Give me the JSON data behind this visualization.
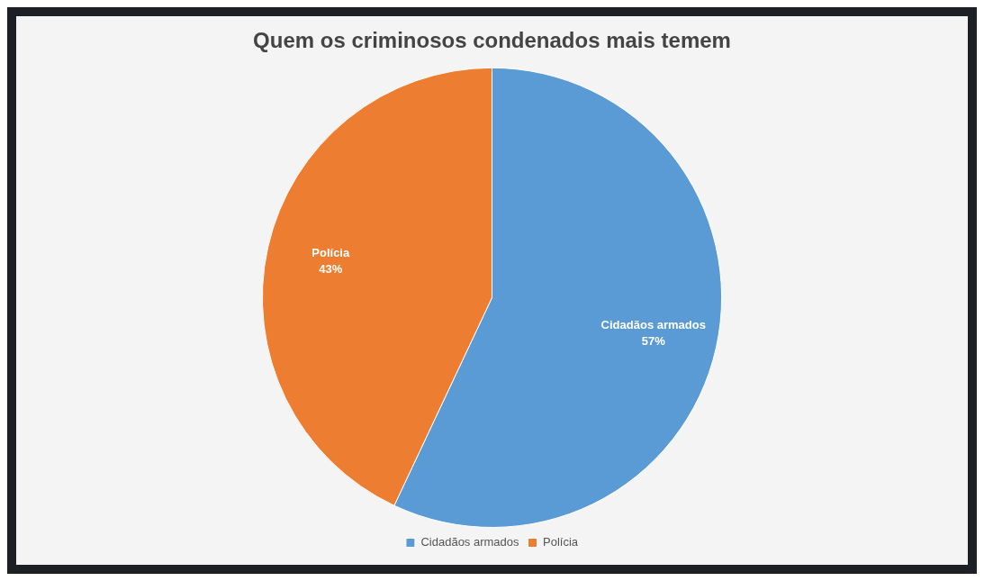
{
  "chart_data": {
    "type": "pie",
    "title": "Quem os criminosos condenados mais temem",
    "categories": [
      "Cidadãos armados",
      "Polícia"
    ],
    "values": [
      57,
      43
    ],
    "value_labels": [
      "57%",
      "43%"
    ],
    "colors": [
      "#5b9bd5",
      "#ed7d31"
    ],
    "data_labels": true,
    "legend": "bottom"
  }
}
